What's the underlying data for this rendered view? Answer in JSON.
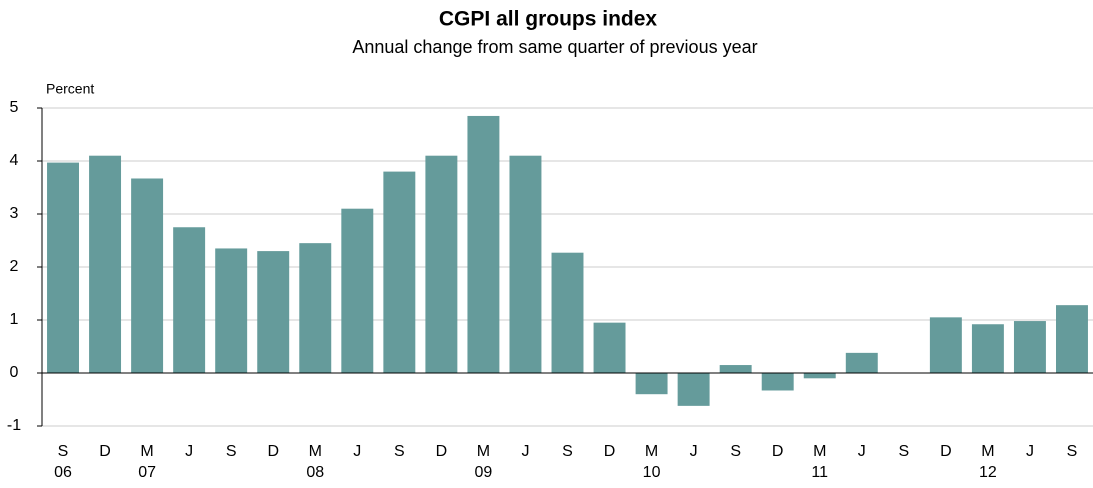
{
  "chart_data": {
    "type": "bar",
    "title": "CGPI all groups index",
    "subtitle": "Annual change from same quarter of previous  year",
    "y_axis_label": "Percent",
    "categories": [
      "S",
      "D",
      "M",
      "J",
      "S",
      "D",
      "M",
      "J",
      "S",
      "D",
      "M",
      "J",
      "S",
      "D",
      "M",
      "J",
      "S",
      "D",
      "M",
      "J",
      "S",
      "D",
      "M",
      "J",
      "S"
    ],
    "category_years": [
      "06",
      null,
      "07",
      null,
      null,
      null,
      "08",
      null,
      null,
      null,
      "09",
      null,
      null,
      null,
      "10",
      null,
      null,
      null,
      "11",
      null,
      null,
      null,
      "12",
      null,
      null
    ],
    "values": [
      3.97,
      4.1,
      3.67,
      2.75,
      2.35,
      2.3,
      2.45,
      3.1,
      3.8,
      4.1,
      4.85,
      4.1,
      2.27,
      0.95,
      -0.4,
      -0.62,
      0.15,
      -0.33,
      -0.1,
      0.38,
      0,
      1.05,
      0.92,
      0.98,
      1.28
    ],
    "color": "#659b9b",
    "ylim": [
      -1,
      5
    ],
    "yticks": [
      -1,
      0,
      1,
      2,
      3,
      4,
      5
    ],
    "grid": true
  }
}
